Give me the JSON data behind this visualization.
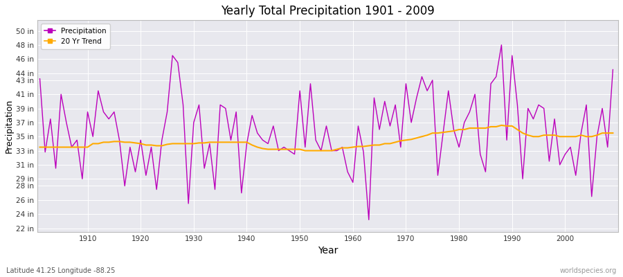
{
  "title": "Yearly Total Precipitation 1901 - 2009",
  "xlabel": "Year",
  "ylabel": "Precipitation",
  "bottom_left": "Latitude 41.25 Longitude -88.25",
  "bottom_right": "worldspecies.org",
  "precip_color": "#bb00bb",
  "trend_color": "#ffaa00",
  "bg_color": "#e8e8ee",
  "fig_bg_color": "#ffffff",
  "years": [
    1901,
    1902,
    1903,
    1904,
    1905,
    1906,
    1907,
    1908,
    1909,
    1910,
    1911,
    1912,
    1913,
    1914,
    1915,
    1916,
    1917,
    1918,
    1919,
    1920,
    1921,
    1922,
    1923,
    1924,
    1925,
    1926,
    1927,
    1928,
    1929,
    1930,
    1931,
    1932,
    1933,
    1934,
    1935,
    1936,
    1937,
    1938,
    1939,
    1940,
    1941,
    1942,
    1943,
    1944,
    1945,
    1946,
    1947,
    1948,
    1949,
    1950,
    1951,
    1952,
    1953,
    1954,
    1955,
    1956,
    1957,
    1958,
    1959,
    1960,
    1961,
    1962,
    1963,
    1964,
    1965,
    1966,
    1967,
    1968,
    1969,
    1970,
    1971,
    1972,
    1973,
    1974,
    1975,
    1976,
    1977,
    1978,
    1979,
    1980,
    1981,
    1982,
    1983,
    1984,
    1985,
    1986,
    1987,
    1988,
    1989,
    1990,
    1991,
    1992,
    1993,
    1994,
    1995,
    1996,
    1997,
    1998,
    1999,
    2000,
    2001,
    2002,
    2003,
    2004,
    2005,
    2006,
    2007,
    2008,
    2009
  ],
  "precip": [
    43.2,
    32.8,
    37.5,
    30.5,
    41.0,
    37.0,
    33.5,
    34.5,
    29.0,
    38.5,
    35.0,
    41.5,
    38.5,
    37.5,
    38.5,
    34.5,
    28.0,
    33.5,
    30.0,
    34.5,
    29.5,
    33.5,
    27.5,
    34.5,
    38.5,
    46.5,
    45.5,
    39.5,
    25.5,
    37.0,
    39.5,
    30.5,
    34.0,
    27.5,
    39.5,
    39.0,
    34.5,
    38.5,
    27.0,
    34.0,
    38.0,
    35.5,
    34.5,
    34.0,
    36.5,
    33.0,
    33.5,
    33.0,
    32.5,
    41.5,
    33.5,
    42.5,
    34.5,
    33.0,
    36.5,
    33.0,
    33.0,
    33.5,
    30.0,
    28.5,
    36.5,
    32.8,
    23.2,
    40.5,
    36.0,
    40.0,
    36.5,
    39.5,
    33.5,
    42.5,
    37.0,
    40.5,
    43.5,
    41.5,
    43.0,
    29.5,
    35.5,
    41.5,
    36.0,
    33.5,
    37.0,
    38.5,
    41.0,
    32.5,
    30.0,
    42.5,
    43.5,
    48.0,
    34.5,
    46.5,
    39.5,
    29.0,
    39.0,
    37.5,
    39.5,
    39.0,
    31.5,
    37.5,
    31.0,
    32.5,
    33.5,
    29.5,
    35.5,
    39.5,
    26.5,
    35.0,
    39.0,
    33.5,
    44.5
  ],
  "trend": [
    33.5,
    33.5,
    33.5,
    33.5,
    33.5,
    33.5,
    33.5,
    33.5,
    33.5,
    33.5,
    34.0,
    34.0,
    34.2,
    34.2,
    34.3,
    34.3,
    34.2,
    34.2,
    34.1,
    34.0,
    33.8,
    33.8,
    33.7,
    33.7,
    33.9,
    34.0,
    34.0,
    34.0,
    34.0,
    34.0,
    34.1,
    34.1,
    34.2,
    34.2,
    34.2,
    34.2,
    34.2,
    34.2,
    34.2,
    34.2,
    33.8,
    33.5,
    33.3,
    33.2,
    33.2,
    33.2,
    33.2,
    33.2,
    33.2,
    33.2,
    33.0,
    33.0,
    33.0,
    33.0,
    33.0,
    33.0,
    33.2,
    33.4,
    33.4,
    33.5,
    33.6,
    33.6,
    33.7,
    33.8,
    33.8,
    34.0,
    34.0,
    34.2,
    34.4,
    34.5,
    34.6,
    34.8,
    35.0,
    35.2,
    35.5,
    35.5,
    35.6,
    35.7,
    35.8,
    36.0,
    36.0,
    36.2,
    36.2,
    36.2,
    36.2,
    36.4,
    36.4,
    36.6,
    36.5,
    36.5,
    36.0,
    35.5,
    35.2,
    35.0,
    35.0,
    35.2,
    35.2,
    35.2,
    35.0,
    35.0,
    35.0,
    35.0,
    35.2,
    35.0,
    35.0,
    35.2,
    35.5,
    35.5,
    35.5
  ],
  "yticks": [
    22,
    24,
    26,
    28,
    29,
    31,
    33,
    35,
    37,
    39,
    41,
    43,
    44,
    46,
    48,
    50
  ],
  "ylim": [
    21.5,
    51.5
  ],
  "xlim": [
    1900.5,
    2010
  ],
  "xticks": [
    1910,
    1920,
    1930,
    1940,
    1950,
    1960,
    1970,
    1980,
    1990,
    2000
  ]
}
